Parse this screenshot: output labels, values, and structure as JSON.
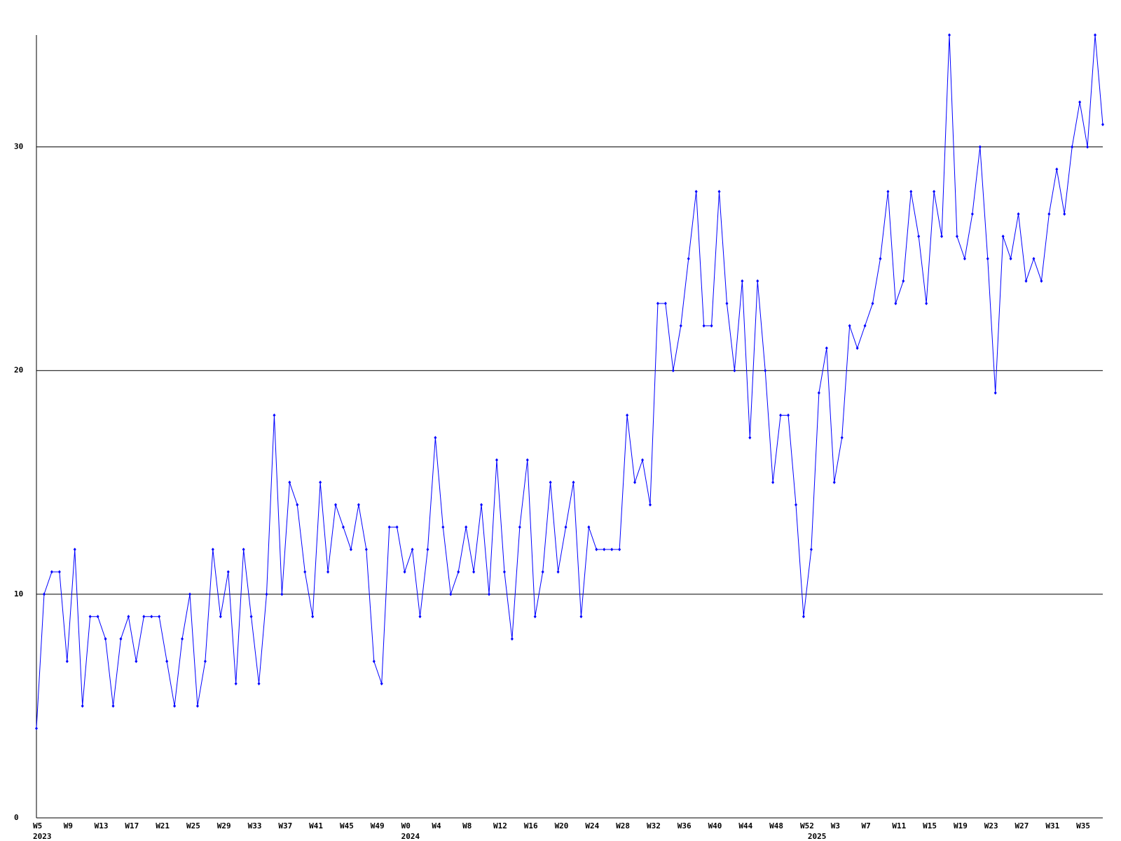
{
  "chart_data": {
    "type": "line",
    "categories": [
      "W5",
      null,
      null,
      null,
      "W9",
      null,
      null,
      null,
      "W13",
      null,
      null,
      null,
      "W17",
      null,
      null,
      null,
      "W21",
      null,
      null,
      null,
      "W25",
      null,
      null,
      null,
      "W29",
      null,
      null,
      null,
      "W33",
      null,
      null,
      null,
      "W37",
      null,
      null,
      null,
      "W41",
      null,
      null,
      null,
      "W45",
      null,
      null,
      null,
      "W49",
      null,
      null,
      null,
      "W0",
      null,
      null,
      null,
      "W4",
      null,
      null,
      null,
      "W8",
      null,
      null,
      null,
      "W12",
      null,
      null,
      null,
      "W16",
      null,
      null,
      null,
      "W20",
      null,
      null,
      null,
      "W24",
      null,
      null,
      null,
      "W28",
      null,
      null,
      null,
      "W32",
      null,
      null,
      null,
      "W36",
      null,
      null,
      null,
      "W40",
      null,
      null,
      null,
      "W44",
      null,
      null,
      null,
      "W48",
      null,
      null,
      null,
      "W52",
      null,
      null,
      null,
      "W3",
      null,
      null,
      null,
      "W7",
      null,
      null,
      null,
      "W11",
      null,
      null,
      null,
      "W15",
      null,
      null,
      null,
      "W19",
      null,
      null,
      null,
      "W23",
      null,
      null,
      null,
      "W27",
      null,
      null,
      null,
      "W31",
      null,
      null,
      null,
      "W35",
      null,
      null,
      null
    ],
    "x_group_labels": [
      "2023",
      null,
      null,
      null,
      null,
      null,
      null,
      null,
      null,
      null,
      null,
      null,
      null,
      null,
      null,
      null,
      null,
      null,
      null,
      null,
      null,
      null,
      null,
      null,
      null,
      null,
      null,
      null,
      null,
      null,
      null,
      null,
      null,
      null,
      null,
      null,
      null,
      null,
      null,
      null,
      null,
      null,
      null,
      null,
      null,
      null,
      null,
      null,
      "2024",
      null,
      null,
      null,
      null,
      null,
      null,
      null,
      null,
      null,
      null,
      null,
      null,
      null,
      null,
      null,
      null,
      null,
      null,
      null,
      null,
      null,
      null,
      null,
      null,
      null,
      null,
      null,
      null,
      null,
      null,
      null,
      null,
      null,
      null,
      null,
      null,
      null,
      null,
      null,
      null,
      null,
      null,
      null,
      null,
      null,
      null,
      null,
      null,
      null,
      null,
      null,
      null,
      "2025",
      null,
      null,
      null,
      null,
      null,
      null,
      null,
      null,
      null,
      null,
      null,
      null,
      null,
      null,
      null,
      null,
      null,
      null,
      null,
      null,
      null,
      null,
      null,
      null,
      null,
      null,
      null,
      null,
      null,
      null,
      null,
      null,
      null,
      null,
      null,
      null,
      null,
      null
    ],
    "series": [
      {
        "color": "#0000ff",
        "values": [
          4,
          10,
          11,
          11,
          7,
          12,
          5,
          9,
          9,
          8,
          5,
          8,
          9,
          7,
          9,
          9,
          9,
          7,
          5,
          8,
          10,
          5,
          7,
          12,
          9,
          11,
          6,
          12,
          9,
          6,
          10,
          18,
          10,
          15,
          14,
          11,
          9,
          15,
          11,
          14,
          13,
          12,
          14,
          12,
          7,
          6,
          13,
          13,
          11,
          12,
          9,
          12,
          17,
          13,
          10,
          11,
          13,
          11,
          14,
          10,
          16,
          11,
          8,
          13,
          16,
          9,
          11,
          15,
          11,
          13,
          15,
          9,
          13,
          12,
          12,
          12,
          12,
          18,
          15,
          16,
          14,
          23,
          23,
          20,
          22,
          25,
          28,
          22,
          22,
          28,
          23,
          20,
          24,
          17,
          24,
          20,
          15,
          18,
          18,
          14,
          9,
          12,
          19,
          21,
          15,
          17,
          22,
          21,
          22,
          23,
          25,
          28,
          23,
          24,
          28,
          26,
          23,
          28,
          26,
          35,
          26,
          25,
          27,
          30,
          25,
          19,
          26,
          25,
          27,
          24,
          25,
          24,
          27,
          29,
          27,
          30,
          32,
          30,
          35,
          31
        ]
      }
    ],
    "ylim": [
      0,
      35
    ],
    "yticks": [
      0,
      10,
      20,
      30
    ],
    "grid": true
  }
}
